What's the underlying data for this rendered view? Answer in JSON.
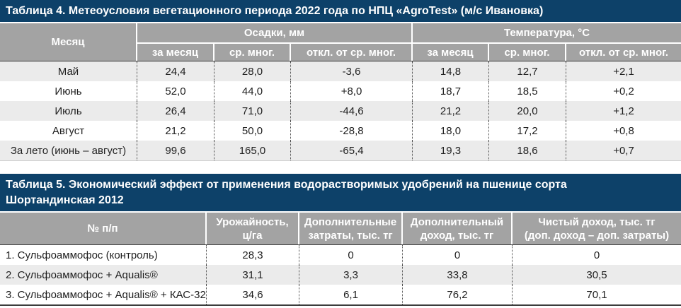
{
  "colors": {
    "title_bar": "#0d4169",
    "header_gray": "#a3a3a3",
    "stripe_gray": "#ebebeb",
    "header_text": "#ffffff"
  },
  "table4": {
    "title": "Таблица 4. Метеоусловия вегетационного периода 2022 года по НПЦ «AgroTest» (м/с Ивановка)",
    "header": {
      "month": "Месяц",
      "precip_group": "Осадки, мм",
      "temp_group": "Температура, °С",
      "sub": [
        "за месяц",
        "ср. мног.",
        "откл. от ср. мног.",
        "за месяц",
        "ср. мног.",
        "откл. от ср. мног."
      ]
    },
    "rows": [
      {
        "label": "Май",
        "values": [
          "24,4",
          "28,0",
          "-3,6",
          "14,8",
          "12,7",
          "+2,1"
        ]
      },
      {
        "label": "Июнь",
        "values": [
          "52,0",
          "44,0",
          "+8,0",
          "18,7",
          "18,5",
          "+0,2"
        ]
      },
      {
        "label": "Июль",
        "values": [
          "26,4",
          "71,0",
          "-44,6",
          "21,2",
          "20,0",
          "+1,2"
        ]
      },
      {
        "label": "Август",
        "values": [
          "21,2",
          "50,0",
          "-28,8",
          "18,0",
          "17,2",
          "+0,8"
        ]
      },
      {
        "label": "За лето (июнь – август)",
        "values": [
          "99,6",
          "165,0",
          "-65,4",
          "19,3",
          "18,6",
          "+0,7"
        ]
      }
    ]
  },
  "table5": {
    "title": "Таблица 5. Экономический эффект от применения водорастворимых удобрений на пшенице сорта\nШортандинская 2012",
    "headers": [
      "№ п/п",
      "Урожайность,\nц/га",
      "Дополнительные\nзатраты, тыс. тг",
      "Дополнительный\nдоход, тыс. тг",
      "Чистый доход, тыс. тг\n(доп. доход – доп. затраты)"
    ],
    "rows": [
      {
        "label": "1. Сульфоаммофос (контроль)",
        "values": [
          "28,3",
          "0",
          "0",
          "0"
        ]
      },
      {
        "label": "2. Сульфоаммофос + Aqualis®",
        "values": [
          "31,1",
          "3,3",
          "33,8",
          "30,5"
        ]
      },
      {
        "label": "3. Сульфоаммофос + Aqualis® + КАС-32",
        "values": [
          "34,6",
          "6,1",
          "76,2",
          "70,1"
        ]
      }
    ]
  }
}
